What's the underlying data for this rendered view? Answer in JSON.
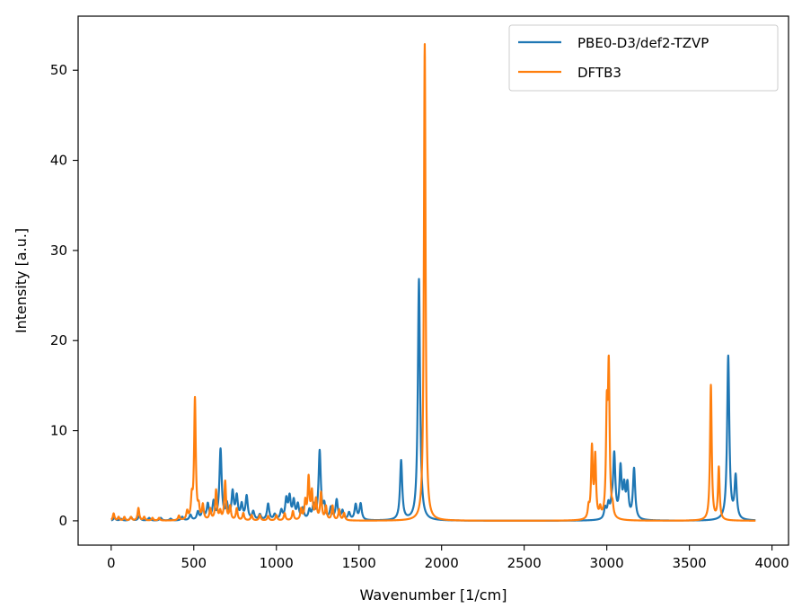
{
  "chart_data": {
    "type": "line",
    "title": "",
    "xlabel": "Wavenumber [1/cm]",
    "ylabel": "Intensity [a.u.]",
    "xlim": [
      -200,
      4100
    ],
    "ylim": [
      -2.7,
      56
    ],
    "x_ticks": [
      0,
      500,
      1000,
      1500,
      2000,
      2500,
      3000,
      3500,
      4000
    ],
    "y_ticks": [
      0,
      10,
      20,
      30,
      40,
      50
    ],
    "x_tick_labels": [
      "0",
      "500",
      "1000",
      "1500",
      "2000",
      "2500",
      "3000",
      "3500",
      "4000"
    ],
    "y_tick_labels": [
      "0",
      "10",
      "20",
      "30",
      "40",
      "50"
    ],
    "x_range": [
      0,
      3900
    ],
    "grid": false,
    "legend_position": "top-right",
    "series": [
      {
        "name": "PBE0-D3/def2-TZVP",
        "color": "#1f77b4",
        "width": 8,
        "peaks": [
          [
            20,
            0.3
          ],
          [
            60,
            0.2
          ],
          [
            120,
            0.4
          ],
          [
            170,
            0.5
          ],
          [
            230,
            0.3
          ],
          [
            300,
            0.3
          ],
          [
            360,
            0.2
          ],
          [
            430,
            0.4
          ],
          [
            480,
            0.6
          ],
          [
            525,
            0.9
          ],
          [
            555,
            1.3
          ],
          [
            585,
            1.7
          ],
          [
            620,
            1.9
          ],
          [
            662,
            7.8
          ],
          [
            700,
            1.6
          ],
          [
            735,
            3.0
          ],
          [
            760,
            2.5
          ],
          [
            790,
            1.6
          ],
          [
            820,
            2.6
          ],
          [
            860,
            0.9
          ],
          [
            900,
            0.6
          ],
          [
            950,
            1.8
          ],
          [
            990,
            0.6
          ],
          [
            1030,
            1.0
          ],
          [
            1060,
            2.2
          ],
          [
            1080,
            2.4
          ],
          [
            1105,
            2.0
          ],
          [
            1130,
            1.6
          ],
          [
            1160,
            1.2
          ],
          [
            1200,
            1.0
          ],
          [
            1225,
            1.5
          ],
          [
            1262,
            7.6
          ],
          [
            1290,
            1.5
          ],
          [
            1330,
            1.3
          ],
          [
            1365,
            2.2
          ],
          [
            1400,
            1.0
          ],
          [
            1440,
            0.8
          ],
          [
            1480,
            1.7
          ],
          [
            1510,
            1.8
          ],
          [
            1755,
            6.6
          ],
          [
            1863,
            26.8
          ],
          [
            2990,
            1.2
          ],
          [
            3010,
            1.5
          ],
          [
            3030,
            1.2
          ],
          [
            3045,
            7.0
          ],
          [
            3083,
            5.5
          ],
          [
            3105,
            3.2
          ],
          [
            3125,
            3.6
          ],
          [
            3165,
            5.6
          ],
          [
            3735,
            18.2
          ],
          [
            3780,
            4.7
          ]
        ]
      },
      {
        "name": "DFTB3",
        "color": "#ff7f0e",
        "width": 6,
        "peaks": [
          [
            15,
            0.8
          ],
          [
            45,
            0.4
          ],
          [
            80,
            0.4
          ],
          [
            120,
            0.4
          ],
          [
            165,
            1.4
          ],
          [
            200,
            0.4
          ],
          [
            250,
            0.3
          ],
          [
            290,
            0.3
          ],
          [
            410,
            0.5
          ],
          [
            460,
            0.9
          ],
          [
            488,
            2.2
          ],
          [
            507,
            13.4
          ],
          [
            530,
            1.2
          ],
          [
            555,
            1.6
          ],
          [
            600,
            1.2
          ],
          [
            635,
            3.3
          ],
          [
            660,
            0.9
          ],
          [
            690,
            4.3
          ],
          [
            720,
            1.5
          ],
          [
            760,
            1.3
          ],
          [
            800,
            0.8
          ],
          [
            850,
            0.6
          ],
          [
            900,
            0.6
          ],
          [
            950,
            0.5
          ],
          [
            1000,
            0.6
          ],
          [
            1050,
            0.8
          ],
          [
            1100,
            1.0
          ],
          [
            1150,
            1.2
          ],
          [
            1175,
            2.0
          ],
          [
            1195,
            4.6
          ],
          [
            1215,
            3.0
          ],
          [
            1240,
            2.2
          ],
          [
            1270,
            3.0
          ],
          [
            1300,
            1.5
          ],
          [
            1340,
            1.6
          ],
          [
            1380,
            1.2
          ],
          [
            1410,
            0.8
          ],
          [
            1898,
            52.9
          ],
          [
            2890,
            1.2
          ],
          [
            2910,
            7.8
          ],
          [
            2930,
            6.8
          ],
          [
            2960,
            1.0
          ],
          [
            3000,
            11.0
          ],
          [
            3012,
            16.0
          ],
          [
            3035,
            1.0
          ],
          [
            3630,
            15.0
          ],
          [
            3678,
            5.8
          ]
        ]
      }
    ]
  }
}
